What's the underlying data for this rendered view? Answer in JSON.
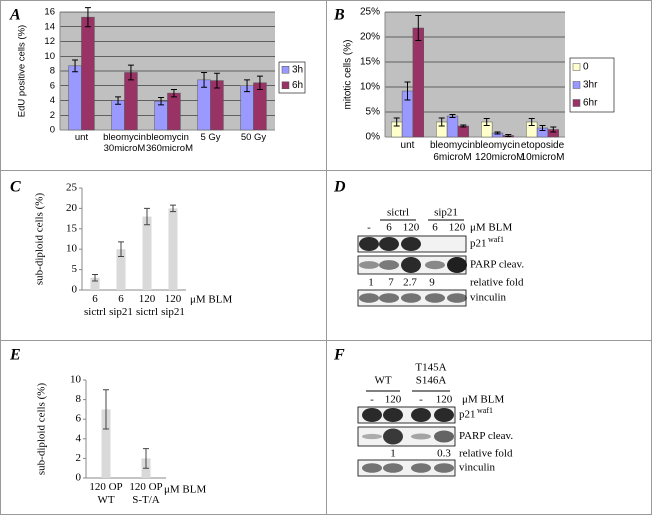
{
  "panel_labels": [
    "A",
    "B",
    "C",
    "D",
    "E",
    "F"
  ],
  "chart_data": [
    {
      "type": "bar",
      "ylabel": "EdU positive cells (%)",
      "categories": [
        "unt",
        "bleomycin 30microM",
        "bleomycin 360microM",
        "5 Gy",
        "50 Gy"
      ],
      "series": [
        {
          "name": "3h",
          "color": "#9999ff",
          "values": [
            8.7,
            4.0,
            3.9,
            6.8,
            6.0
          ],
          "errors": [
            0.8,
            0.5,
            0.5,
            1.0,
            0.8
          ]
        },
        {
          "name": "6h",
          "color": "#993366",
          "values": [
            15.3,
            7.8,
            5.0,
            6.7,
            6.4
          ],
          "errors": [
            1.3,
            1.0,
            0.5,
            1.0,
            0.9
          ]
        }
      ],
      "ylim": [
        0,
        16
      ],
      "yticks": [
        0,
        2,
        4,
        6,
        8,
        10,
        12,
        14,
        16
      ],
      "grid": true,
      "plot_background": "#c0c0c0",
      "legend": "right"
    },
    {
      "type": "bar",
      "ylabel": "mitotic cells (%)",
      "categories": [
        "unt",
        "bleomycin 6microM",
        "bleomycin 120microM",
        "etoposide 10microM"
      ],
      "series": [
        {
          "name": "0",
          "color": "#ffffcc",
          "values": [
            3.0,
            3.0,
            3.0,
            3.0
          ],
          "errors": [
            0.8,
            0.8,
            0.7,
            0.7
          ]
        },
        {
          "name": "3hr",
          "color": "#9999ff",
          "values": [
            9.2,
            4.2,
            0.8,
            1.8
          ],
          "errors": [
            1.8,
            0.3,
            0.2,
            0.5
          ]
        },
        {
          "name": "6hr",
          "color": "#993366",
          "values": [
            21.8,
            2.2,
            0.3,
            1.5
          ],
          "errors": [
            2.5,
            0.2,
            0.2,
            0.5
          ]
        }
      ],
      "ylim": [
        0,
        25
      ],
      "yticks": [
        {
          "value": 0,
          "label": "0%"
        },
        {
          "value": 5,
          "label": "5%"
        },
        {
          "value": 10,
          "label": "10%"
        },
        {
          "value": 15,
          "label": "15%"
        },
        {
          "value": 20,
          "label": "20%"
        },
        {
          "value": 25,
          "label": "25%"
        }
      ],
      "grid": true,
      "plot_background": "#c0c0c0",
      "legend": "right"
    },
    {
      "type": "bar",
      "ylabel": "sub-diploid cells (%)",
      "categories": [
        "6 sictrl",
        "6 sip21",
        "120 sictrl",
        "120 sip21"
      ],
      "values": [
        3,
        10,
        18,
        20
      ],
      "errors": [
        0.8,
        1.8,
        2.0,
        0.8
      ],
      "color": "#d9d9d9",
      "ylim": [
        0,
        25
      ],
      "yticks": [
        0,
        5,
        10,
        15,
        20,
        25
      ],
      "grid": false,
      "annotation": "μM BLM"
    },
    {
      "type": "bar",
      "ylabel": "sub-diploid cells (%)",
      "categories": [
        "120 OP WT",
        "120 OP S-T/A"
      ],
      "values": [
        7,
        2
      ],
      "errors": [
        2,
        1
      ],
      "color": "#d9d9d9",
      "ylim": [
        0,
        10
      ],
      "yticks": [
        0,
        2,
        4,
        6,
        8,
        10
      ],
      "grid": false,
      "annotation": "μM BLM"
    }
  ],
  "blots": [
    {
      "groups": [
        [
          "sictrl"
        ],
        [
          "sip21"
        ]
      ],
      "lanes": [
        "-",
        "6",
        "120",
        "6",
        "120"
      ],
      "unit": "μM BLM",
      "rows": [
        {
          "label": "p21",
          "sup": "waf1"
        },
        {
          "label": "PARP cleav."
        },
        {
          "label": "vinculin"
        }
      ],
      "fold_label": "relative fold",
      "fold": [
        1,
        7,
        2.7,
        9
      ]
    },
    {
      "groups": [
        [
          "WT"
        ],
        [
          "T145A",
          "S146A"
        ]
      ],
      "lanes": [
        "-",
        "120",
        "-",
        "120"
      ],
      "unit": "μM BLM",
      "rows": [
        {
          "label": "p21",
          "sup": "waf1"
        },
        {
          "label": "PARP cleav."
        },
        {
          "label": "vinculin"
        }
      ],
      "fold_label": "relative fold",
      "fold": [
        1,
        0.3
      ]
    }
  ]
}
